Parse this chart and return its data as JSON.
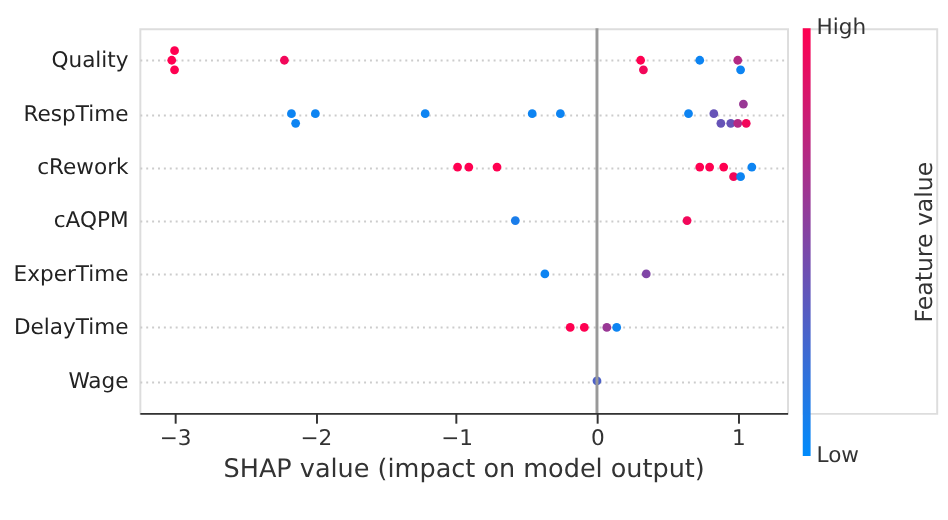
{
  "chart_data": {
    "type": "scatter",
    "orientation": "horizontal",
    "xlabel": "SHAP value (impact on model output)",
    "clabel": "Feature value",
    "categories": [
      "Quality",
      "RespTime",
      "cRework",
      "cAQPM",
      "ExperTime",
      "DelayTime",
      "Wage"
    ],
    "series": [
      {
        "values": [
          -3.02,
          -2.17,
          -0.99,
          -0.58,
          -0.37,
          -0.19,
          0.0
        ],
        "colors": [
          "#ff0051",
          "#0d84f2",
          "#ff0051",
          "#1a7dea",
          "#0d84f2",
          "#ff0051",
          "#4d61c8"
        ]
      },
      {
        "values": [
          -3.0,
          -2.14,
          -0.91,
          0.64,
          0.35,
          -0.09,
          null
        ],
        "colors": [
          "#ff0051",
          "#0d84f2",
          "#ff0051",
          "#f2075a",
          "#8046a6",
          "#ff0051",
          null
        ]
      },
      {
        "values": [
          -3.0,
          -2.0,
          -0.71,
          null,
          null,
          0.07,
          null
        ],
        "colors": [
          "#ff0051",
          "#0d84f2",
          "#ff0051",
          null,
          null,
          "#993895",
          null
        ]
      },
      {
        "values": [
          -2.22,
          -1.22,
          0.73,
          null,
          null,
          0.14,
          null
        ],
        "colors": [
          "#f2075a",
          "#0d84f2",
          "#ff0051",
          null,
          null,
          "#0d84f2",
          null
        ]
      },
      {
        "values": [
          0.31,
          -0.46,
          0.8,
          null,
          null,
          null,
          null
        ],
        "colors": [
          "#ff0051",
          "#0d84f2",
          "#ff0051",
          null,
          null,
          null,
          null
        ]
      },
      {
        "values": [
          0.33,
          -0.26,
          0.9,
          null,
          null,
          null,
          null
        ],
        "colors": [
          "#f2075a",
          "#0d84f2",
          "#ff0051",
          null,
          null,
          null,
          null
        ]
      },
      {
        "values": [
          0.73,
          0.65,
          0.97,
          null,
          null,
          null,
          null
        ],
        "colors": [
          "#0d84f2",
          "#0d84f2",
          "#f2075a",
          null,
          null,
          null,
          null
        ]
      },
      {
        "values": [
          1.0,
          0.83,
          1.02,
          null,
          null,
          null,
          null
        ],
        "colors": [
          "#b32a84",
          "#6653b7",
          "#0d84f2",
          null,
          null,
          null,
          null
        ]
      },
      {
        "values": [
          1.02,
          0.88,
          1.1,
          null,
          null,
          null,
          null
        ],
        "colors": [
          "#0d84f2",
          "#6653b7",
          "#0d84f2",
          null,
          null,
          null,
          null
        ]
      },
      {
        "values": [
          null,
          0.95,
          null,
          null,
          null,
          null,
          null
        ],
        "colors": [
          null,
          "#6653b7",
          null,
          null,
          null,
          null,
          null
        ]
      },
      {
        "values": [
          null,
          1.0,
          null,
          null,
          null,
          null,
          null
        ],
        "colors": [
          null,
          "#b32a84",
          null,
          null,
          null,
          null,
          null
        ]
      },
      {
        "values": [
          null,
          1.06,
          null,
          null,
          null,
          null,
          null
        ],
        "colors": [
          null,
          "#f2075a",
          null,
          null,
          null,
          null,
          null
        ]
      },
      {
        "values": [
          null,
          1.04,
          null,
          null,
          null,
          null,
          null
        ],
        "colors": [
          null,
          "#993895",
          null,
          null,
          null,
          null,
          null
        ]
      }
    ],
    "cticks": [
      "Low",
      "High"
    ],
    "xlim": [
      -3.25,
      1.35
    ],
    "xticks": [
      {
        "value": -3,
        "label": "−3"
      },
      {
        "value": -2,
        "label": "−2"
      },
      {
        "value": -1,
        "label": "−1"
      },
      {
        "value": 0,
        "label": "0"
      },
      {
        "value": 1,
        "label": "1"
      }
    ],
    "ref_lines": [
      {
        "axis": "x",
        "value": 0,
        "color": "#999999"
      }
    ],
    "grid": "y",
    "marker": "circle"
  }
}
